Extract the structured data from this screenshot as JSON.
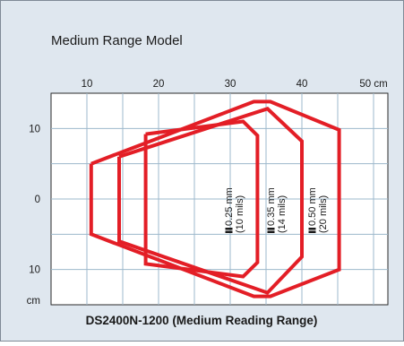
{
  "chart_data": {
    "type": "line",
    "title": "Medium Range Model",
    "caption": "DS2400N-1200 (Medium Reading Range)",
    "x_unit": "cm",
    "y_unit": "cm",
    "x_ticks": [
      10,
      20,
      30,
      40,
      50
    ],
    "y_ticks": [
      10,
      0,
      10
    ],
    "xlim": [
      5,
      52
    ],
    "ylim": [
      -15,
      15
    ],
    "grid": true,
    "colors": {
      "series": "#e31e26",
      "grid": "#9db8cc",
      "panel": "#dfe7ef",
      "plot_bg": "#ffffff",
      "text": "#1a1a1a"
    },
    "series": [
      {
        "name_line1": "0.25 mm",
        "name_line2": "(10 mils)",
        "points": [
          [
            18.2,
            9.2
          ],
          [
            31.8,
            11.0
          ],
          [
            33.8,
            9.0
          ],
          [
            33.8,
            -9.0
          ],
          [
            31.8,
            -11.0
          ],
          [
            18.2,
            -9.2
          ],
          [
            18.2,
            9.2
          ]
        ]
      },
      {
        "name_line1": "0.35 mm",
        "name_line2": "(14 mils)",
        "points": [
          [
            14.5,
            6.0
          ],
          [
            35.2,
            12.8
          ],
          [
            40.0,
            8.2
          ],
          [
            40.0,
            -8.2
          ],
          [
            35.2,
            -13.3
          ],
          [
            14.5,
            -6.0
          ],
          [
            14.5,
            6.0
          ]
        ]
      },
      {
        "name_line1": "0.50 mm",
        "name_line2": "(20 mils)",
        "points": [
          [
            10.6,
            5.0
          ],
          [
            33.3,
            13.8
          ],
          [
            35.6,
            13.8
          ],
          [
            45.2,
            9.8
          ],
          [
            45.2,
            -10.0
          ],
          [
            35.6,
            -13.8
          ],
          [
            33.3,
            -13.8
          ],
          [
            10.6,
            -5.0
          ],
          [
            10.6,
            5.0
          ]
        ]
      }
    ]
  }
}
